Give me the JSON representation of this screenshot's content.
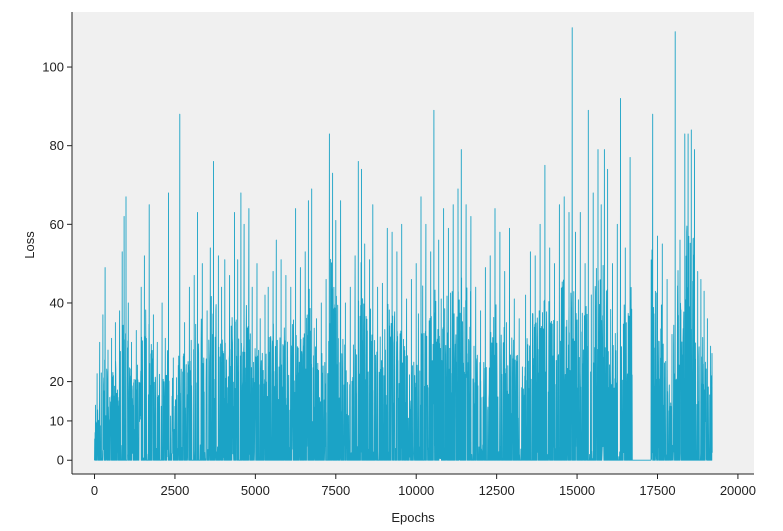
{
  "chart_data": {
    "type": "line",
    "title": "",
    "xlabel": "Epochs",
    "ylabel": "Loss",
    "xlim": [
      -700,
      20500
    ],
    "ylim": [
      -3.5,
      114
    ],
    "x_ticks": [
      0,
      2500,
      5000,
      7500,
      10000,
      12500,
      15000,
      17500,
      20000
    ],
    "x_tick_labels": [
      "0",
      "2500",
      "5000",
      "7500",
      "10000",
      "12500",
      "15000",
      "17500",
      "20000"
    ],
    "y_ticks": [
      0,
      10,
      20,
      40,
      60,
      80,
      100
    ],
    "y_tick_labels": [
      "0",
      "10",
      "20",
      "40",
      "60",
      "80",
      "100"
    ],
    "grid": false,
    "background_color": "#f0f0f0",
    "line_color": "#1ba3c6",
    "series": [
      {
        "name": "",
        "x_range": [
          0,
          19200
        ],
        "peaks": [
          [
            30,
            14
          ],
          [
            80,
            22
          ],
          [
            160,
            30
          ],
          [
            260,
            37
          ],
          [
            330,
            49
          ],
          [
            420,
            28
          ],
          [
            530,
            31
          ],
          [
            650,
            35
          ],
          [
            780,
            38
          ],
          [
            860,
            53
          ],
          [
            920,
            62
          ],
          [
            980,
            67
          ],
          [
            1050,
            40
          ],
          [
            1150,
            30
          ],
          [
            1300,
            33
          ],
          [
            1450,
            44
          ],
          [
            1550,
            52
          ],
          [
            1700,
            65
          ],
          [
            1830,
            37
          ],
          [
            1950,
            30
          ],
          [
            2100,
            40
          ],
          [
            2200,
            31
          ],
          [
            2300,
            68
          ],
          [
            2450,
            26
          ],
          [
            2550,
            21
          ],
          [
            2650,
            88
          ],
          [
            2800,
            35
          ],
          [
            2950,
            44
          ],
          [
            3100,
            47
          ],
          [
            3200,
            63
          ],
          [
            3350,
            50
          ],
          [
            3500,
            38
          ],
          [
            3600,
            54
          ],
          [
            3700,
            76
          ],
          [
            3850,
            52
          ],
          [
            3950,
            44
          ],
          [
            4050,
            51
          ],
          [
            4200,
            47
          ],
          [
            4350,
            63
          ],
          [
            4450,
            51
          ],
          [
            4550,
            68
          ],
          [
            4650,
            60
          ],
          [
            4800,
            64
          ],
          [
            4900,
            44
          ],
          [
            5050,
            50
          ],
          [
            5150,
            36
          ],
          [
            5300,
            42
          ],
          [
            5400,
            44
          ],
          [
            5550,
            48
          ],
          [
            5650,
            56
          ],
          [
            5800,
            51
          ],
          [
            5950,
            47
          ],
          [
            6100,
            44
          ],
          [
            6250,
            64
          ],
          [
            6400,
            49
          ],
          [
            6550,
            53
          ],
          [
            6650,
            66
          ],
          [
            6750,
            69
          ],
          [
            6900,
            36
          ],
          [
            7050,
            40
          ],
          [
            7200,
            46
          ],
          [
            7300,
            83
          ],
          [
            7400,
            73
          ],
          [
            7500,
            61
          ],
          [
            7650,
            66
          ],
          [
            7800,
            40
          ],
          [
            7950,
            44
          ],
          [
            8100,
            52
          ],
          [
            8200,
            76
          ],
          [
            8300,
            74
          ],
          [
            8400,
            55
          ],
          [
            8550,
            51
          ],
          [
            8650,
            65
          ],
          [
            8800,
            44
          ],
          [
            8950,
            45
          ],
          [
            9100,
            59
          ],
          [
            9250,
            58
          ],
          [
            9400,
            53
          ],
          [
            9550,
            60
          ],
          [
            9700,
            41
          ],
          [
            9850,
            46
          ],
          [
            10000,
            50
          ],
          [
            10150,
            67
          ],
          [
            10300,
            60
          ],
          [
            10450,
            53
          ],
          [
            10550,
            89
          ],
          [
            10700,
            56
          ],
          [
            10850,
            64
          ],
          [
            11000,
            59
          ],
          [
            11150,
            65
          ],
          [
            11300,
            69
          ],
          [
            11400,
            79
          ],
          [
            11550,
            65
          ],
          [
            11700,
            62
          ],
          [
            11850,
            44
          ],
          [
            12000,
            38
          ],
          [
            12150,
            49
          ],
          [
            12300,
            52
          ],
          [
            12450,
            64
          ],
          [
            12600,
            58
          ],
          [
            12750,
            48
          ],
          [
            12900,
            59
          ],
          [
            13050,
            41
          ],
          [
            13200,
            36
          ],
          [
            13400,
            42
          ],
          [
            13550,
            53
          ],
          [
            13700,
            52
          ],
          [
            13850,
            60
          ],
          [
            14000,
            75
          ],
          [
            14150,
            54
          ],
          [
            14300,
            50
          ],
          [
            14450,
            65
          ],
          [
            14600,
            67
          ],
          [
            14750,
            63
          ],
          [
            14850,
            110
          ],
          [
            14950,
            58
          ],
          [
            15100,
            63
          ],
          [
            15250,
            50
          ],
          [
            15350,
            89
          ],
          [
            15500,
            68
          ],
          [
            15650,
            79
          ],
          [
            15750,
            65
          ],
          [
            15850,
            79
          ],
          [
            15950,
            74
          ],
          [
            16100,
            50
          ],
          [
            16250,
            60
          ],
          [
            16350,
            92
          ],
          [
            16500,
            54
          ],
          [
            16650,
            77
          ],
          [
            17350,
            88
          ],
          [
            17500,
            57
          ],
          [
            17650,
            55
          ],
          [
            17800,
            46
          ],
          [
            17950,
            32
          ],
          [
            18050,
            109
          ],
          [
            18200,
            56
          ],
          [
            18350,
            83
          ],
          [
            18450,
            83
          ],
          [
            18550,
            84
          ],
          [
            18650,
            79
          ],
          [
            18750,
            48
          ],
          [
            18850,
            46
          ],
          [
            18950,
            43
          ],
          [
            19050,
            36
          ],
          [
            19150,
            29
          ]
        ],
        "flat_zero_intervals": [
          [
            16720,
            17300
          ]
        ]
      }
    ]
  }
}
